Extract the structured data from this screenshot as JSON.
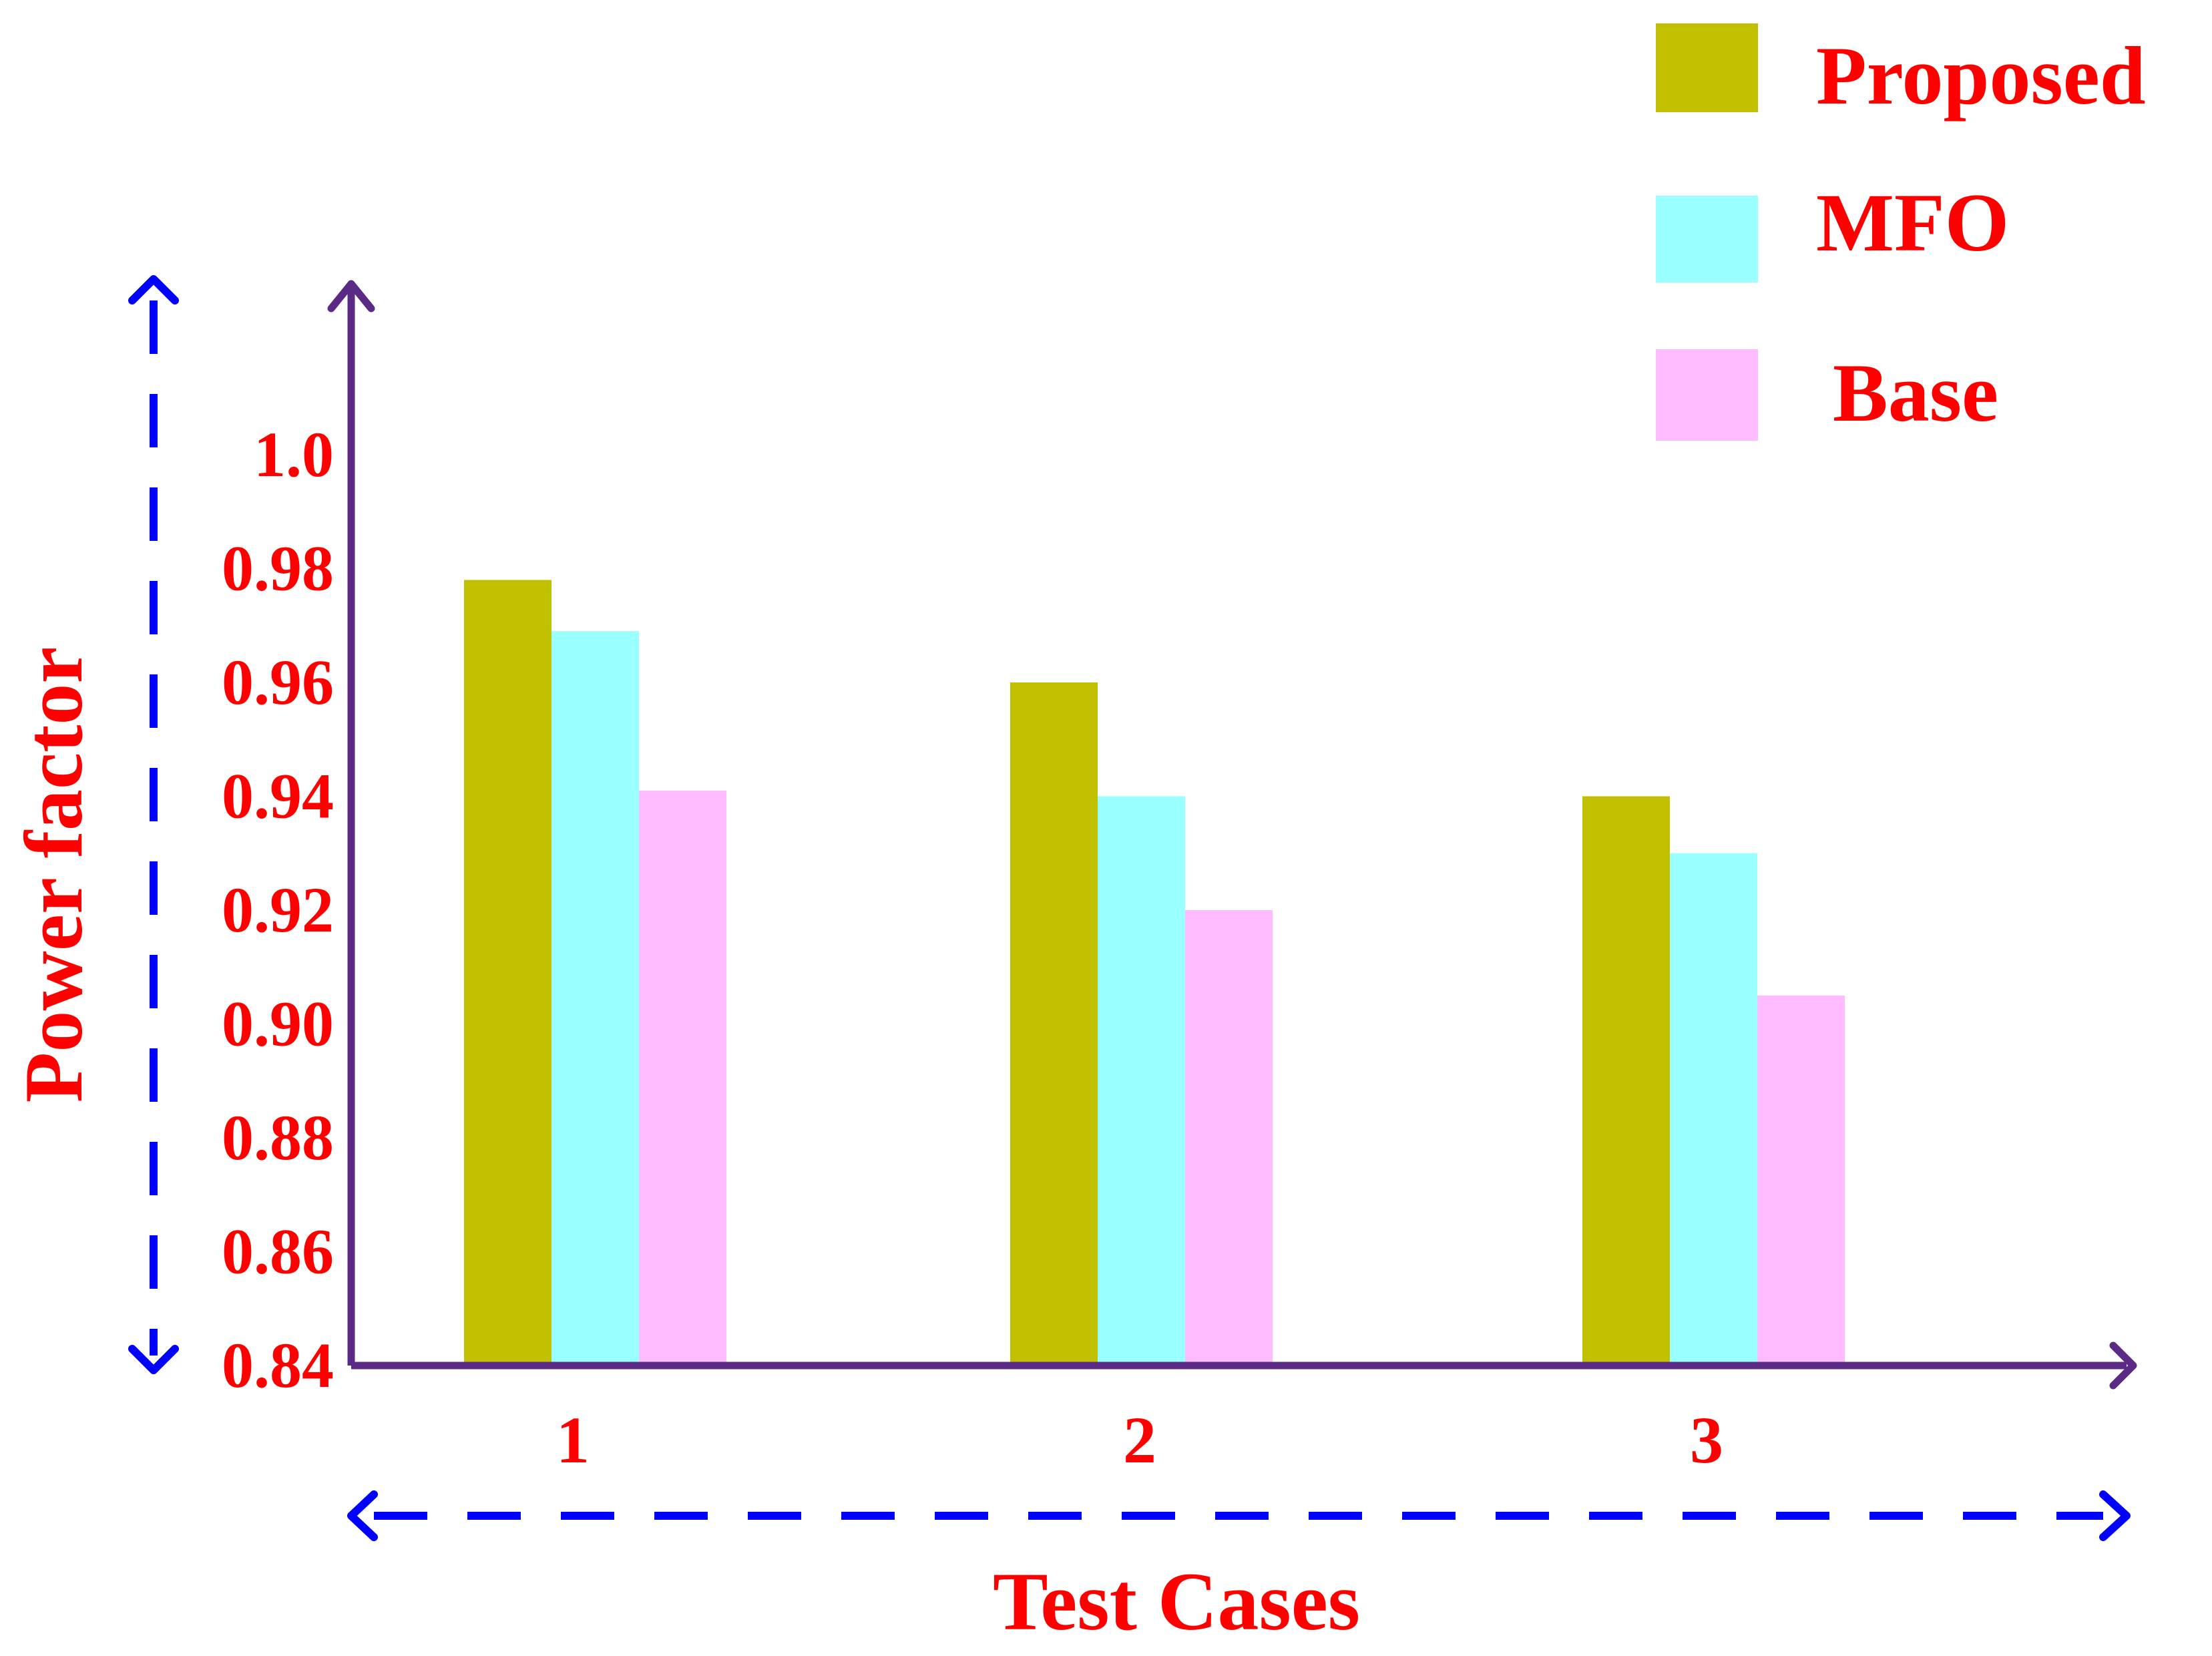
{
  "chart_data": {
    "type": "bar",
    "categories": [
      "1",
      "2",
      "3"
    ],
    "series": [
      {
        "name": "Proposed",
        "values": [
          0.978,
          0.96,
          0.94
        ],
        "color": "#c0c000"
      },
      {
        "name": "MFO",
        "values": [
          0.969,
          0.94,
          0.93
        ],
        "color": "#99ffff"
      },
      {
        "name": "Base",
        "values": [
          0.941,
          0.92,
          0.905
        ],
        "color": "#ffbbff"
      }
    ],
    "yticks": [
      "0.84",
      "0.86",
      "0.88",
      "0.90",
      "0.92",
      "0.94",
      "0.96",
      "0.98",
      "1.0"
    ],
    "ylim": [
      0.84,
      1.0
    ],
    "xlabel": "Test Cases",
    "ylabel": "Power factor",
    "legend_position": "top-right",
    "grid": false,
    "colors": {
      "axis": "#5b2a86",
      "arrows": "#0000ff",
      "text": "#ff0000"
    }
  }
}
